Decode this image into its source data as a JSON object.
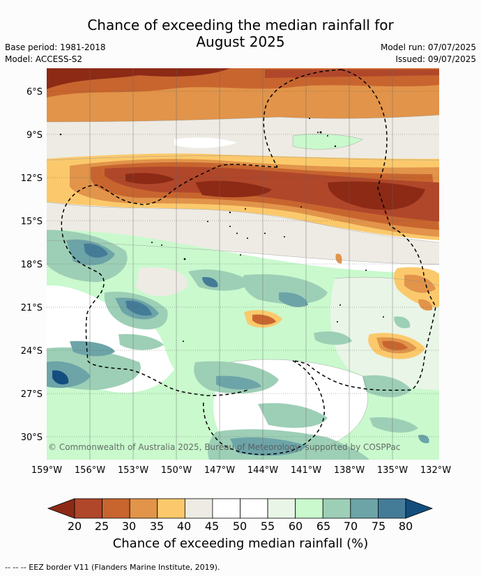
{
  "header": {
    "title_line1": "Chance of exceeding the median rainfall for",
    "title_line2": "August 2025",
    "base_period": "Base period: 1981-2018",
    "model": "Model: ACCESS-S2",
    "model_run": "Model run: 07/07/2025",
    "issued": "Issued: 09/07/2025"
  },
  "map": {
    "lat_labels": [
      "6°S",
      "9°S",
      "12°S",
      "15°S",
      "18°S",
      "21°S",
      "24°S",
      "27°S",
      "30°S"
    ],
    "lon_labels": [
      "159°W",
      "156°W",
      "153°W",
      "150°W",
      "147°W",
      "144°W",
      "141°W",
      "138°W",
      "135°W",
      "132°W"
    ],
    "copyright": "© Commonwealth of Australia 2025, Bureau of Meteorology, supported by COSPPac"
  },
  "colorbar": {
    "ticks": [
      "20",
      "25",
      "30",
      "35",
      "40",
      "45",
      "50",
      "55",
      "60",
      "65",
      "70",
      "75",
      "80"
    ],
    "colors": [
      "#8c2a16",
      "#b0472a",
      "#c8652f",
      "#e1944a",
      "#fbc96c",
      "#eeebe4",
      "#ffffff",
      "#ffffff",
      "#e9f5e7",
      "#c9f9cd",
      "#9dcfb6",
      "#6da4a8",
      "#447c98",
      "#134e7f"
    ],
    "label": "Chance of exceeding median rainfall (%)"
  },
  "footer": {
    "legend_line": "--  --  -- EEZ border V11 (Flanders Marine Institute, 2019)."
  }
}
